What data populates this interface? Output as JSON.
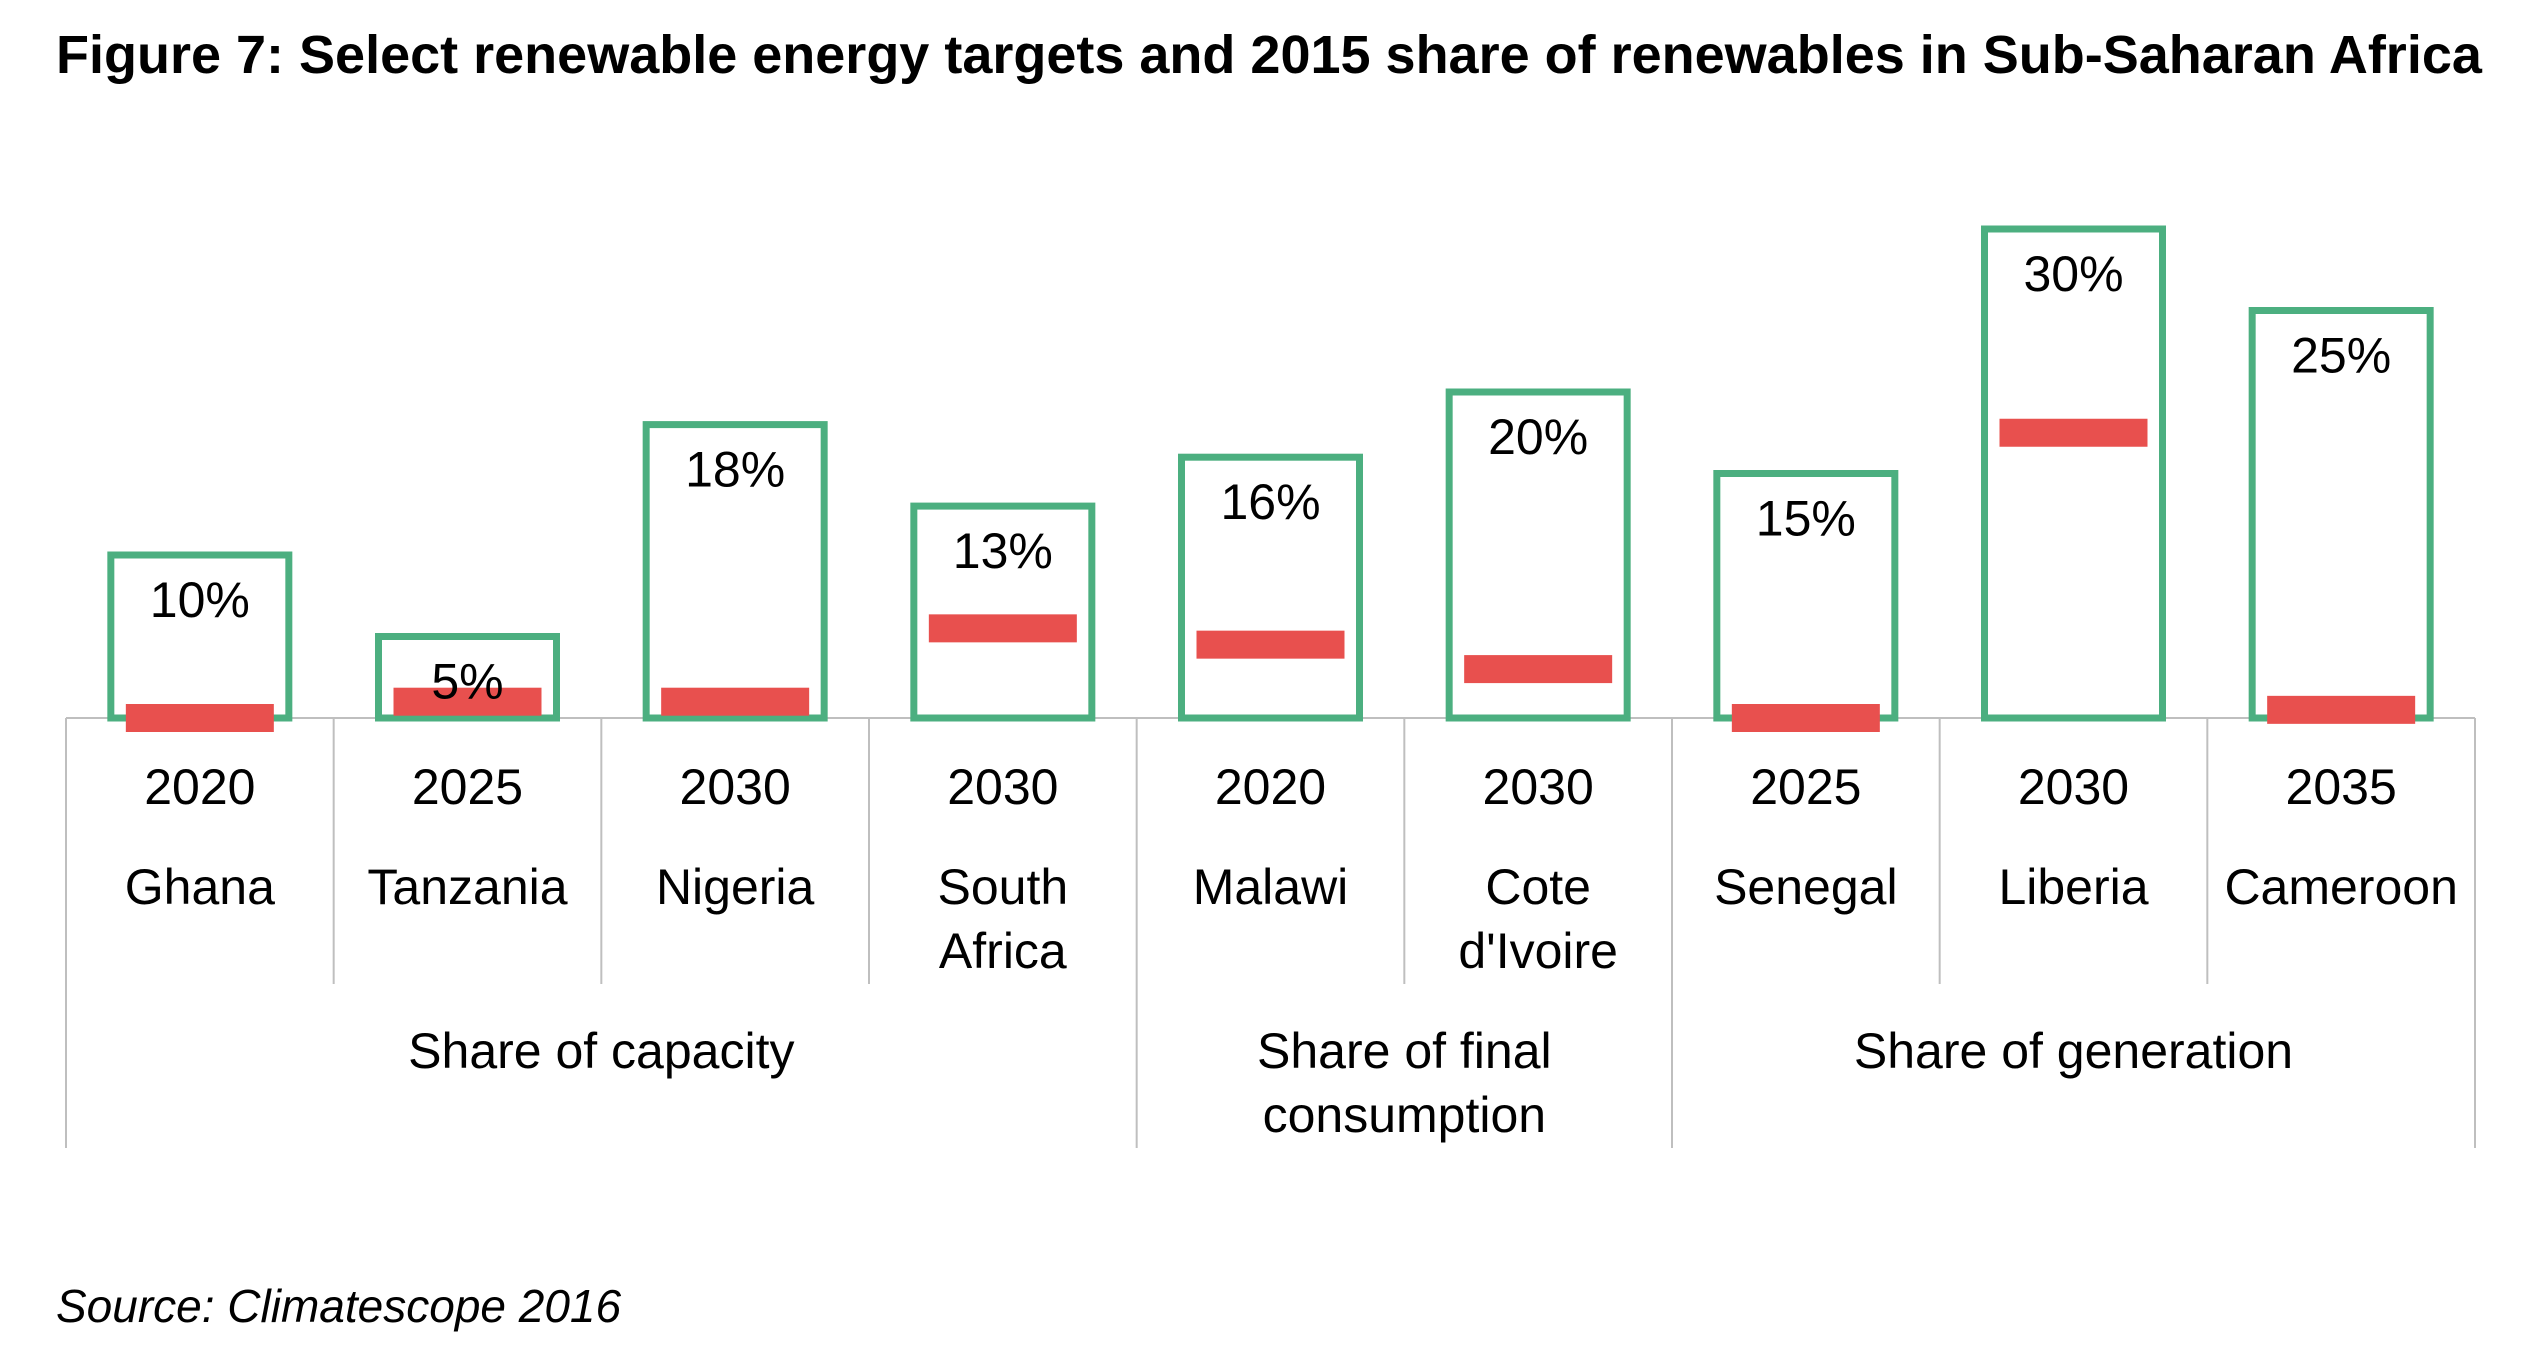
{
  "title": "Figure 7: Select renewable energy targets and 2015 share of renewables in Sub-Saharan Africa",
  "source": "Source: Climatescope 2016",
  "colors": {
    "target_outline": "#4caf80",
    "share_bar": "#e8504e",
    "grid": "#bfbfbf"
  },
  "chart_data": {
    "type": "bar",
    "series": [
      {
        "name": "",
        "kind": "target",
        "values": [
          10,
          5,
          18,
          13,
          16,
          20,
          15,
          30,
          25
        ],
        "labels": [
          "10%",
          "5%",
          "18%",
          "13%",
          "16%",
          "20%",
          "15%",
          "30%",
          "25%"
        ]
      },
      {
        "name": "",
        "kind": "2015 share",
        "values": [
          0,
          1,
          1,
          5.5,
          4.5,
          3,
          0,
          17.5,
          0.5
        ]
      }
    ],
    "years": [
      "2020",
      "2025",
      "2030",
      "2030",
      "2020",
      "2030",
      "2025",
      "2030",
      "2035"
    ],
    "countries": [
      [
        "Ghana"
      ],
      [
        "Tanzania"
      ],
      [
        "Nigeria"
      ],
      [
        "South",
        "Africa"
      ],
      [
        "Malawi"
      ],
      [
        "Cote",
        "d'Ivoire"
      ],
      [
        "Senegal"
      ],
      [
        "Liberia"
      ],
      [
        "Cameroon"
      ]
    ],
    "groups": [
      {
        "label": [
          "Share of capacity"
        ],
        "span": [
          0,
          3
        ]
      },
      {
        "label": [
          "Share of final",
          "consumption"
        ],
        "span": [
          4,
          5
        ]
      },
      {
        "label": [
          "Share of generation"
        ],
        "span": [
          6,
          8
        ]
      }
    ],
    "ylim": [
      0,
      30
    ]
  }
}
